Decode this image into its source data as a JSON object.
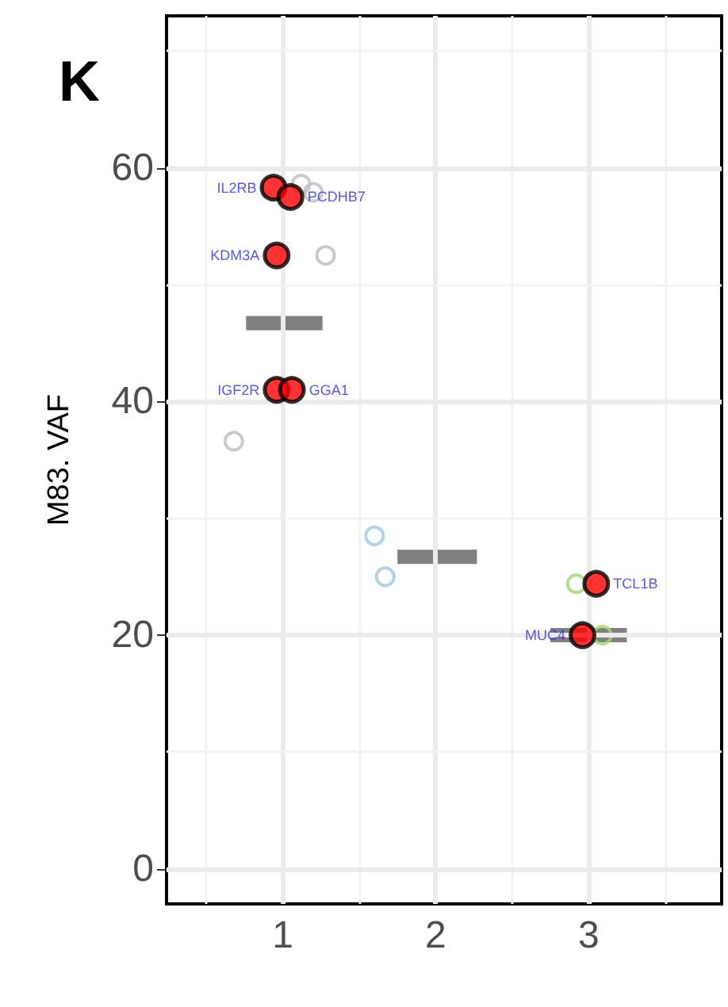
{
  "chart_data": {
    "type": "scatter",
    "title": "K",
    "ylabel": "M83. VAF",
    "xlim": [
      0.24,
      3.87
    ],
    "xticks": [
      1,
      2,
      3
    ],
    "ylim": [
      -3,
      73
    ],
    "yticks": [
      0,
      20,
      40,
      60
    ],
    "grid": true,
    "series": [
      {
        "color": "#bdbdbd",
        "marker": "circle",
        "x": [
          1.12,
          1.2,
          1.28,
          0.68
        ],
        "values": [
          58.6,
          57.9,
          52.5,
          36.6
        ]
      },
      {
        "color": "#9ecae1",
        "marker": "circle",
        "x": [
          1.6,
          1.67
        ],
        "values": [
          28.5,
          25.0
        ]
      },
      {
        "color": "#a1d76a",
        "marker": "circle",
        "x": [
          2.92,
          3.09
        ],
        "values": [
          24.4,
          20.0
        ]
      },
      {
        "type": "line",
        "marker": "none",
        "color": "#808080",
        "x": [
          0.76,
          1.26
        ],
        "values": [
          46.7,
          46.7
        ]
      },
      {
        "type": "line",
        "marker": "none",
        "color": "#808080",
        "x": [
          1.75,
          2.27
        ],
        "values": [
          26.7,
          26.7
        ]
      },
      {
        "type": "line",
        "marker": "none",
        "color": "#808080",
        "x": [
          2.75,
          3.25
        ],
        "values": [
          20.0,
          20.0
        ]
      },
      {
        "color": "#ff0000",
        "marker": "circle",
        "x": [
          0.94,
          1.05,
          0.96,
          0.96,
          1.06,
          3.05,
          2.96
        ],
        "values": [
          58.3,
          57.5,
          52.5,
          41.0,
          41.0,
          24.4,
          20.0
        ],
        "value_labels": [
          "IL2RB",
          "PCDHB7",
          "KDM3A",
          "IGF2R",
          "GGA1",
          "TCL1B",
          "MUC4"
        ]
      }
    ]
  }
}
